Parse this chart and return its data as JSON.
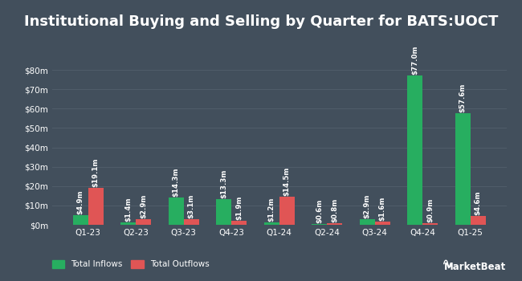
{
  "title": "Institutional Buying and Selling by Quarter for BATS:UOCT",
  "quarters": [
    "Q1-23",
    "Q2-23",
    "Q3-23",
    "Q4-23",
    "Q1-24",
    "Q2-24",
    "Q3-24",
    "Q4-24",
    "Q1-25"
  ],
  "inflows": [
    4.9,
    1.4,
    14.3,
    13.3,
    1.2,
    0.6,
    2.9,
    77.0,
    57.6
  ],
  "outflows": [
    19.1,
    2.9,
    3.1,
    1.9,
    14.5,
    0.8,
    1.6,
    0.9,
    4.6
  ],
  "inflow_labels": [
    "$4.9m",
    "$1.4m",
    "$14.3m",
    "$13.3m",
    "$1.2m",
    "$0.6m",
    "$2.9m",
    "$77.0m",
    "$57.6m"
  ],
  "outflow_labels": [
    "$19.1m",
    "$2.9m",
    "$3.1m",
    "$1.9m",
    "$14.5m",
    "$0.8m",
    "$1.6m",
    "$0.9m",
    "$4.6m"
  ],
  "bar_color_inflow": "#27ae60",
  "bar_color_outflow": "#e05555",
  "background_color": "#424f5c",
  "text_color": "#ffffff",
  "grid_color": "#505d6a",
  "ylabel_ticks": [
    "$0m",
    "$10m",
    "$20m",
    "$30m",
    "$40m",
    "$50m",
    "$60m",
    "$70m",
    "$80m"
  ],
  "ytick_vals": [
    0,
    10,
    20,
    30,
    40,
    50,
    60,
    70,
    80
  ],
  "ylim": [
    0,
    90
  ],
  "legend_inflow": "Total Inflows",
  "legend_outflow": "Total Outflows",
  "bar_width": 0.32,
  "title_fontsize": 13,
  "label_fontsize": 6.2,
  "tick_fontsize": 7.5,
  "legend_fontsize": 7.5
}
